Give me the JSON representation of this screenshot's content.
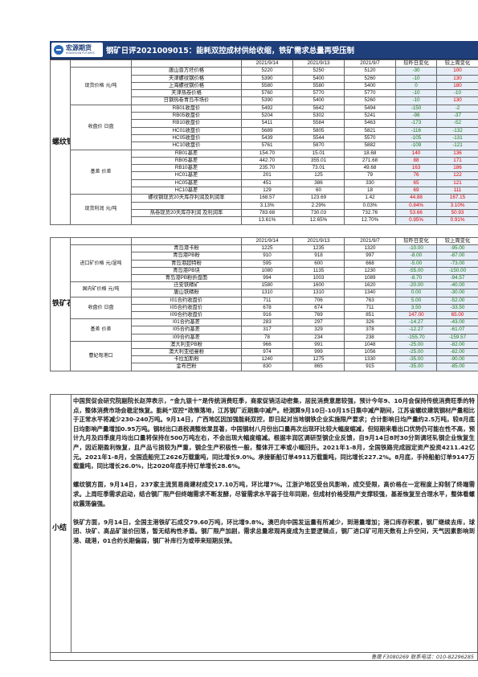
{
  "header": {
    "logo_text": "宏源期货",
    "logo_sub": "HONGYUAN FUTURES",
    "title": "钢矿日评2021009015：能耗双控成材供给收缩，铁矿需求总量再受压制"
  },
  "rebar": {
    "section": "螺纹钢",
    "columns": [
      "",
      "",
      "2021/9/14",
      "2021/9/13",
      "2021/9/7",
      "较昨日变化",
      "较上周变化"
    ],
    "groups": [
      {
        "label": "现货价格 元/吨",
        "rows": [
          [
            "唐山普方坯价格",
            "5220",
            "5250",
            "5120",
            "-30",
            "100",
            "g",
            "r"
          ],
          [
            "天津螺纹钢价格",
            "5390",
            "5400",
            "5260",
            "-10",
            "130",
            "g",
            "r"
          ],
          [
            "上海螺纹钢价格",
            "5580",
            "5580",
            "5400",
            "0",
            "180",
            "g",
            "r"
          ],
          [
            "天津热卷价格",
            "5760",
            "5770",
            "5770",
            "-10",
            "-10",
            "g",
            "g"
          ],
          [
            "日钢热卷青岛市场价",
            "5390",
            "5400",
            "5260",
            "-10",
            "130",
            "g",
            "r"
          ]
        ]
      },
      {
        "label": "收盘价 日盘",
        "rows": [
          [
            "RB01收盘价",
            "5492",
            "5642",
            "5494",
            "-150",
            "-2",
            "g",
            "g"
          ],
          [
            "RB05收盘价",
            "5204",
            "5302",
            "5241",
            "-98",
            "-37",
            "g",
            "g"
          ],
          [
            "RB10收盘价",
            "5411",
            "5584",
            "5463",
            "-173",
            "-52",
            "g",
            "g"
          ],
          [
            "HC01收盘价",
            "5689",
            "5805",
            "5821",
            "-116",
            "-132",
            "g",
            "g"
          ],
          [
            "HC05收盘价",
            "5439",
            "5544",
            "5570",
            "-105",
            "-131",
            "g",
            "g"
          ],
          [
            "HC10收盘价",
            "5761",
            "5870",
            "5882",
            "-109",
            "-121",
            "g",
            "g"
          ]
        ]
      },
      {
        "label": "基差 价差",
        "rows": [
          [
            "RB01基差",
            "154.70",
            "15.01",
            "18.68",
            "140",
            "136",
            "r",
            "r"
          ],
          [
            "RB05基差",
            "442.70",
            "355.01",
            "271.68",
            "88",
            "171",
            "r",
            "r"
          ],
          [
            "RB10基差",
            "235.70",
            "73.01",
            "49.68",
            "163",
            "186",
            "r",
            "r"
          ],
          [
            "HC01基差",
            "201",
            "125",
            "79",
            "76",
            "122",
            "r",
            "r"
          ],
          [
            "HC05基差",
            "451",
            "386",
            "330",
            "65",
            "121",
            "r",
            "r"
          ],
          [
            "HC10基差",
            "129",
            "60",
            "18",
            "69",
            "111",
            "r",
            "r"
          ]
        ]
      },
      {
        "label": "现货利润 元/吨",
        "rows": [
          [
            "螺纹钢现货20天库存利润及利润率",
            "168.57",
            "123.69",
            "1.42",
            "44.88",
            "167.15",
            "r",
            "r"
          ],
          [
            "",
            "3.13%",
            "2.29%",
            "0.03%",
            "0.84%",
            "3.10%",
            "r",
            "r"
          ],
          [
            "热卷现货20天库存利润 及利润率",
            "783.68",
            "730.03",
            "732.76",
            "53.66",
            "50.93",
            "r",
            "r"
          ],
          [
            "",
            "13.61%",
            "12.65%",
            "12.70%",
            "0.95%",
            "0.91%",
            "r",
            "r"
          ]
        ]
      }
    ]
  },
  "ore": {
    "section": "铁矿石",
    "columns": [
      "",
      "",
      "2021/9/14",
      "2021/9/13",
      "2021/9/7",
      "较昨日变化",
      "较上周变化"
    ],
    "groups": [
      {
        "label": "进口矿价格 元/湿吨",
        "rows": [
          [
            "青岛港卡粉",
            "1225",
            "1235",
            "1320",
            "-10.00",
            "-95.00",
            "g",
            "g"
          ],
          [
            "青岛港PB粉",
            "910",
            "918",
            "997",
            "-8.00",
            "-87.00",
            "g",
            "g"
          ],
          [
            "青岛港超特粉",
            "595",
            "600",
            "668",
            "-5.00",
            "-73.00",
            "g",
            "g"
          ],
          [
            "青岛港PB块",
            "1080",
            "1135",
            "1230",
            "-55.00",
            "-150.00",
            "g",
            "g"
          ],
          [
            "青岛港PB粉折盘面",
            "994",
            "1003",
            "1089",
            "-8.70",
            "-94.57",
            "g",
            "g"
          ]
        ]
      },
      {
        "label": "国内矿价格 元/吨",
        "rows": [
          [
            "迁安铁精矿",
            "1580",
            "1600",
            "1620",
            "-20.00",
            "-40.00",
            "g",
            "g"
          ],
          [
            "唐山铁精粉",
            "1310",
            "1310",
            "1340",
            "0.00",
            "-30.00",
            "g",
            "g"
          ]
        ]
      },
      {
        "label": "收盘价 日盘",
        "rows": [
          [
            "I01合约收盘价",
            "711",
            "706",
            "763",
            "5.00",
            "-52.00",
            "g",
            "g"
          ],
          [
            "I05合约收盘价",
            "678",
            "674",
            "711",
            "3.50",
            "-33.50",
            "g",
            "g"
          ],
          [
            "I09合约收盘价",
            "916",
            "769",
            "851",
            "147.00",
            "65.00",
            "r",
            "r"
          ]
        ]
      },
      {
        "label": "基差 价差",
        "rows": [
          [
            "I01合约基差",
            "283",
            "297",
            "326",
            "-14.27",
            "-43.00",
            "g",
            "g"
          ],
          [
            "I05合约基差",
            "317",
            "329",
            "378",
            "-12.27",
            "-61.07",
            "g",
            "g"
          ],
          [
            "I09合约基差",
            "78",
            "234",
            "238",
            "-155.70",
            "-159.57",
            "g",
            "g"
          ]
        ]
      },
      {
        "label": "曹妃甸港口",
        "rows": [
          [
            "澳大利亚PB粉",
            "966",
            "991",
            "1048",
            "-25.00",
            "-82.00",
            "g",
            "g"
          ],
          [
            "澳大利亚纽曼粉",
            "974",
            "999",
            "1056",
            "-25.00",
            "-82.00",
            "g",
            "g"
          ],
          [
            "卡拉加斯粉",
            "1240",
            "1275",
            "1330",
            "-35.00",
            "-90.00",
            "g",
            "g"
          ],
          [
            "金布巴粉",
            "830",
            "865",
            "915",
            "-35.00",
            "-85.00",
            "g",
            "g"
          ]
        ]
      }
    ]
  },
  "summary": {
    "label": "小结",
    "paragraphs": [
      "中国贸促会研究院副院长赵萍表示，“金九银十”是传统消费旺季，商家促销活动密集，居民消费意愿较强，预计今年9、10月会保持传统消费旺季的特点，整体消费市场会稳定恢复。能耗“双控”政策落地，江苏钢厂近期集中减产。经测算9月10日-10月15日集中减产期间，江苏省螺纹建筑钢材产量相比于正常水平将减少230-240万吨。9月14日，广西地区因加强能耗双控，即日起对当地钢铁企业实施限产要求；合计影响日均产量约2.5万吨，较8月底日均影响产量增加0.95万吨。钢材出口退税调整效果显著，中国钢材八月份出口量再次出现环比较大幅度缩减，但短期来看出口优势仍可能在性不高，预计九月及四季度月均出口量将保持在500万吨左右，不会出现大幅度缩减。根据丰润区调研型钢企业反馈，自9月14日8时30分到调坯轧钢企业恢复生产，因近期盈利恢复，且产品亏损较为严重，钢企生产积极性一般，整体开工率或小幅回升。2021年1-8月，全国铁路完成固定资产投资4211.42亿元。2021年1-8月，全国造船完工2626万载重吨，同比增长9.0%。承接新船订单4911万载重吨，同比增长227.2%。8月底，手持船舶订单9147万载重吨，同比增长26.0%，比2020年底手持订单增长28.6%。",
      "螺纹钢方面，9月14日，237家主流贸易商建材成交17.10万吨，环比增7%。江浙沪地区受台风影响，成交受限，高价格在一定程度上抑制了终端需求。上周旺季需求启动，结合钢厂限产但终端需求不断发酵，尽管需求水平弱于往年同期，但成材价格受限产支撑较强，基差恢复至合理水平，整体看螺纹震荡偏强。",
      "铁矿方面，9月14日，全国主港铁矿石成交79.60万吨，环比增9.8%。澳巴向中国发运量有所减少，到港量增加；港口库存积累，钢厂继续去库，球团、块矿、高品矿溢价回落，暂无结构性矛盾。钢厂限产加剧，需求总量悲观再度成为主要逻辑点，钢厂进口矿可用天数有上升空间，天气因素影响到港、疏港，01合约长期偏弱，钢厂补库行为或带来短期反弹。"
    ]
  },
  "footer": {
    "text": "鲁晟 F3080269 联系电话：010-82296285"
  },
  "colors": {
    "banner": "#1f3f7a",
    "up": "#e00000",
    "down": "#1a7a1a"
  }
}
